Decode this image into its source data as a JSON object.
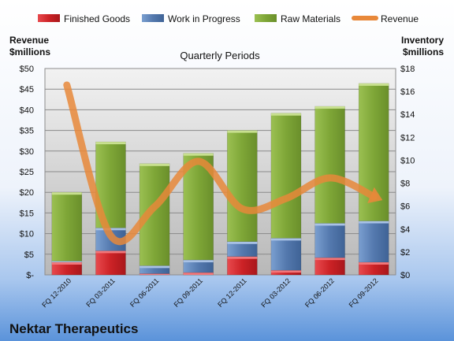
{
  "chart_data": {
    "type": "bar",
    "title": "Quarterly Periods",
    "company": "Nektar Therapeutics",
    "left_axis_label": [
      "Revenue",
      "$millions"
    ],
    "right_axis_label": [
      "Inventory",
      "$millions"
    ],
    "categories": [
      "FQ 12-2010",
      "FQ 03-2011",
      "FQ 06-2011",
      "FQ 09-2011",
      "FQ 12-2011",
      "FQ 03-2012",
      "FQ 06-2012",
      "FQ 09-2012"
    ],
    "left_ticks": [
      "$-",
      "$5",
      "$10",
      "$15",
      "$20",
      "$25",
      "$30",
      "$35",
      "$40",
      "$45",
      "$50"
    ],
    "right_ticks": [
      "$0",
      "$2",
      "$4",
      "$6",
      "$8",
      "$10",
      "$12",
      "$14",
      "$16",
      "$18"
    ],
    "left_ylim": [
      0,
      50
    ],
    "right_ylim": [
      0,
      18
    ],
    "grid": true,
    "legend_position": "top",
    "series": [
      {
        "name": "Finished Goods",
        "axis": "right",
        "kind": "stacked-bar",
        "color": "#d9252a",
        "values": [
          1.1,
          2.1,
          0.1,
          0.2,
          1.6,
          0.4,
          1.5,
          1.1
        ]
      },
      {
        "name": "Work in Progress",
        "axis": "right",
        "kind": "stacked-bar",
        "color": "#4f81bd",
        "values": [
          0.1,
          2.0,
          0.7,
          1.1,
          1.3,
          2.8,
          3.0,
          3.6
        ]
      },
      {
        "name": "Raw Materials",
        "axis": "right",
        "kind": "stacked-bar",
        "color": "#8ab33f",
        "values": [
          6.0,
          7.5,
          8.9,
          9.3,
          9.7,
          10.9,
          10.2,
          12.0
        ]
      },
      {
        "name": "Revenue",
        "axis": "left",
        "kind": "line",
        "color": "#e8883a",
        "values": [
          46,
          9.5,
          16.5,
          27.5,
          16,
          18.5,
          23.5,
          19
        ]
      }
    ]
  }
}
